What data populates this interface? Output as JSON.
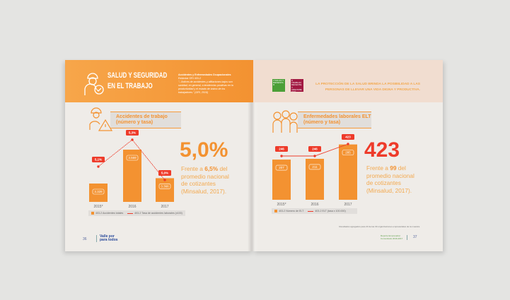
{
  "left_page": {
    "header_title_1": "SALUD Y SEGURIDAD",
    "header_title_2": "EN EL TRABAJO",
    "header_note_title": "Accidentes y Enfermedades Ocupacionales",
    "header_note_ref": "Estándar GRI 403-2",
    "header_note_body": "\"...Índices de accidentes y afiliaciones bajos son sanidad, en general, a tendencias positivas en la productividad y el estado de ánimo de los trabajadores.\" (GRI, 2016)",
    "section_title_1": "Accidentes de trabajo",
    "section_title_2": "(número y tasa)",
    "highlight": "5,0%",
    "note_pre": "Frente a ",
    "note_bold": "6,5%",
    "note_post": " del promedio nacional de cotizantes (Minsalud, 2017).",
    "page_number": "36",
    "logo_text_1": "Valle por",
    "logo_text_2": "para todos"
  },
  "right_page": {
    "quote_1": "LA PROTECCIÓN DE LA SALUD BRINDA LA  POSIBILIDAD A LAS",
    "quote_2": "PERSONAS DE LLEVAR UNA  VIDA DIGNA Y PRODUCTIVA.",
    "sdg_3_label": "3 SALUD Y BIENESTAR",
    "sdg_8_label": "8 TRABAJO DECENTE Y CRECIMIENTO ECONÓMICO",
    "section_title_1": "Enfermedades laborales ELT",
    "section_title_2": "(número y tasa)",
    "highlight": "423",
    "note_pre": "Frente a ",
    "note_bold": "99",
    "note_post": " del promedio nacional de cotizantes (Minsalud, 2017).",
    "footnote": "Resultados agregados para 23 de las 30 organizaciones empresariales de la muestra.",
    "report_logo": "Reporte Empresarial Comunitario 2016-2017",
    "page_number": "37"
  },
  "colors": {
    "orange": "#f39231",
    "red": "#ee3b2a",
    "sdg3": "#4c9f38",
    "sdg8": "#a21942"
  },
  "chart_data": [
    {
      "type": "bar+line",
      "categories": [
        "2015*",
        "2016",
        "2017"
      ],
      "series": [
        {
          "name": "403-2 Accidentes totales",
          "type": "bar",
          "values": [
            3328,
            3569,
            3366
          ],
          "labels": [
            "3.328",
            "3.569",
            "3.366"
          ]
        },
        {
          "name": "403-2 Tasa de accidentes laborales (x100)",
          "type": "line",
          "values": [
            5.1,
            5.3,
            5.0
          ],
          "labels": [
            "5,1%",
            "5,3%",
            "5,0%"
          ]
        }
      ],
      "legend": "bottom"
    },
    {
      "type": "bar+line",
      "categories": [
        "2015*",
        "2016",
        "2017"
      ],
      "series": [
        {
          "name": "403-2 Número de ELT",
          "type": "bar",
          "values": [
            207,
            211,
            285
          ],
          "labels": [
            "207",
            "211",
            "285"
          ]
        },
        {
          "name": "403-2 ELT (tasa x 100.000)",
          "type": "line",
          "values": [
            246,
            246,
            423
          ],
          "labels": [
            "246",
            "246",
            "423"
          ]
        }
      ],
      "legend": "bottom"
    }
  ]
}
